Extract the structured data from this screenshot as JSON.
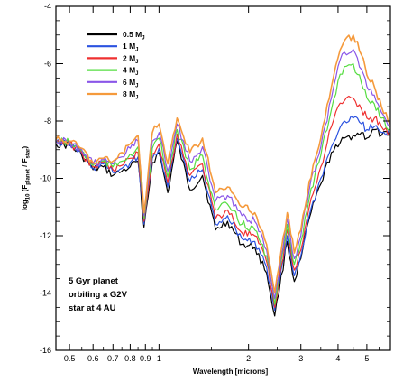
{
  "chart_data": {
    "type": "line",
    "xlabel": "Wavelength",
    "xlabel_unit": "[microns]",
    "ylabel": "log10 (F_planet / F_star)",
    "xscale": "log",
    "xlim": [
      0.45,
      6.0
    ],
    "ylim": [
      -16,
      -4
    ],
    "xticks": [
      0.5,
      0.6,
      0.7,
      0.8,
      0.9,
      1,
      2,
      3,
      4,
      5
    ],
    "xtick_labels": [
      "0.5",
      "0.6",
      "0.7",
      "0.8",
      "0.9",
      "1",
      "2",
      "3",
      "4",
      "5"
    ],
    "yticks": [
      -4,
      -6,
      -8,
      -10,
      -12,
      -14,
      -16
    ],
    "ytick_labels": [
      "-4",
      "-6",
      "-8",
      "-10",
      "-12",
      "-14",
      "-16"
    ],
    "legend_position": "top-left",
    "annotation": [
      "5 Gyr planet",
      "orbiting a G2V",
      "star at 4 AU"
    ],
    "series": [
      {
        "name": "0.5 M_J",
        "color": "#000000",
        "x": [
          0.45,
          0.5,
          0.55,
          0.6,
          0.65,
          0.7,
          0.75,
          0.8,
          0.85,
          0.89,
          0.95,
          1.0,
          1.07,
          1.15,
          1.27,
          1.4,
          1.55,
          1.7,
          1.9,
          2.1,
          2.3,
          2.45,
          2.7,
          2.85,
          3.0,
          3.2,
          3.5,
          3.8,
          4.0,
          4.2,
          4.5,
          4.8,
          5.0,
          5.3,
          5.6,
          6.0
        ],
        "y": [
          -8.8,
          -8.85,
          -9.2,
          -9.7,
          -9.6,
          -9.9,
          -9.75,
          -9.6,
          -9.4,
          -11.7,
          -9.45,
          -9.1,
          -10.5,
          -8.7,
          -10.4,
          -9.9,
          -11.8,
          -11.5,
          -12.3,
          -12.4,
          -13.3,
          -14.8,
          -12.2,
          -13.6,
          -12.8,
          -11.4,
          -10.2,
          -9.1,
          -8.9,
          -8.6,
          -8.5,
          -8.4,
          -8.6,
          -8.3,
          -8.5,
          -8.5
        ]
      },
      {
        "name": "1 M_J",
        "color": "#2b52e0",
        "x": [
          0.45,
          0.5,
          0.55,
          0.6,
          0.65,
          0.7,
          0.75,
          0.8,
          0.85,
          0.89,
          0.95,
          1.0,
          1.07,
          1.15,
          1.27,
          1.4,
          1.55,
          1.7,
          1.9,
          2.1,
          2.3,
          2.45,
          2.7,
          2.85,
          3.0,
          3.2,
          3.5,
          3.8,
          4.0,
          4.2,
          4.5,
          4.8,
          5.0,
          5.3,
          5.6,
          6.0
        ],
        "y": [
          -8.75,
          -8.8,
          -9.15,
          -9.65,
          -9.5,
          -9.8,
          -9.65,
          -9.45,
          -9.25,
          -11.6,
          -9.3,
          -8.95,
          -10.3,
          -8.6,
          -10.1,
          -9.7,
          -11.6,
          -11.3,
          -12.1,
          -12.2,
          -13.1,
          -14.6,
          -12.0,
          -13.4,
          -12.7,
          -11.3,
          -10.0,
          -8.9,
          -8.4,
          -8.0,
          -7.9,
          -8.1,
          -8.3,
          -8.2,
          -8.4,
          -8.5
        ]
      },
      {
        "name": "2 M_J",
        "color": "#ef3030",
        "x": [
          0.45,
          0.5,
          0.55,
          0.6,
          0.65,
          0.7,
          0.75,
          0.8,
          0.85,
          0.89,
          0.95,
          1.0,
          1.07,
          1.15,
          1.27,
          1.4,
          1.55,
          1.7,
          1.9,
          2.1,
          2.3,
          2.45,
          2.7,
          2.85,
          3.0,
          3.2,
          3.5,
          3.8,
          4.0,
          4.2,
          4.5,
          4.8,
          5.0,
          5.3,
          5.6,
          6.0
        ],
        "y": [
          -8.72,
          -8.77,
          -9.1,
          -9.6,
          -9.45,
          -9.7,
          -9.55,
          -9.3,
          -9.1,
          -11.5,
          -9.15,
          -8.8,
          -10.15,
          -8.45,
          -9.9,
          -9.5,
          -11.4,
          -11.1,
          -11.9,
          -12.0,
          -12.9,
          -14.5,
          -11.8,
          -13.2,
          -12.5,
          -11.0,
          -9.6,
          -8.2,
          -7.5,
          -7.3,
          -7.2,
          -7.6,
          -7.9,
          -7.9,
          -8.2,
          -8.4
        ]
      },
      {
        "name": "4 M_J",
        "color": "#55dd40",
        "x": [
          0.45,
          0.5,
          0.55,
          0.6,
          0.65,
          0.7,
          0.75,
          0.8,
          0.85,
          0.89,
          0.95,
          1.0,
          1.07,
          1.15,
          1.27,
          1.4,
          1.55,
          1.7,
          1.9,
          2.1,
          2.3,
          2.45,
          2.7,
          2.85,
          3.0,
          3.2,
          3.5,
          3.8,
          4.0,
          4.2,
          4.5,
          4.8,
          5.0,
          5.3,
          5.6,
          6.0
        ],
        "y": [
          -8.7,
          -8.75,
          -9.05,
          -9.55,
          -9.4,
          -9.6,
          -9.4,
          -9.15,
          -8.9,
          -11.4,
          -8.95,
          -8.6,
          -9.95,
          -8.3,
          -9.7,
          -9.2,
          -11.1,
          -10.9,
          -11.6,
          -11.8,
          -12.7,
          -14.4,
          -11.6,
          -13.0,
          -12.2,
          -10.7,
          -9.2,
          -7.6,
          -6.6,
          -6.1,
          -6.0,
          -6.7,
          -7.2,
          -7.4,
          -7.9,
          -8.3
        ]
      },
      {
        "name": "6 M_J",
        "color": "#8a56e8",
        "x": [
          0.45,
          0.5,
          0.55,
          0.6,
          0.65,
          0.7,
          0.75,
          0.8,
          0.85,
          0.89,
          0.95,
          1.0,
          1.07,
          1.15,
          1.27,
          1.4,
          1.55,
          1.7,
          1.9,
          2.1,
          2.3,
          2.45,
          2.7,
          2.85,
          3.0,
          3.2,
          3.5,
          3.8,
          4.0,
          4.2,
          4.5,
          4.8,
          5.0,
          5.3,
          5.6,
          6.0
        ],
        "y": [
          -8.68,
          -8.73,
          -9.0,
          -9.5,
          -9.35,
          -9.5,
          -9.25,
          -8.95,
          -8.7,
          -11.3,
          -8.7,
          -8.4,
          -9.75,
          -8.1,
          -9.4,
          -8.9,
          -10.8,
          -10.6,
          -11.3,
          -11.5,
          -12.5,
          -14.2,
          -11.4,
          -12.8,
          -12.0,
          -10.4,
          -8.9,
          -7.2,
          -6.1,
          -5.6,
          -5.5,
          -6.2,
          -6.8,
          -7.1,
          -7.7,
          -8.2
        ]
      },
      {
        "name": "8 M_J",
        "color": "#f59a3c",
        "x": [
          0.45,
          0.5,
          0.55,
          0.6,
          0.65,
          0.7,
          0.75,
          0.8,
          0.85,
          0.89,
          0.95,
          1.0,
          1.07,
          1.15,
          1.27,
          1.4,
          1.55,
          1.7,
          1.9,
          2.1,
          2.3,
          2.45,
          2.7,
          2.85,
          3.0,
          3.2,
          3.5,
          3.8,
          4.0,
          4.2,
          4.5,
          4.8,
          5.0,
          5.3,
          5.6,
          6.0
        ],
        "y": [
          -8.65,
          -8.7,
          -8.95,
          -9.45,
          -9.3,
          -9.4,
          -9.1,
          -8.8,
          -8.5,
          -11.2,
          -8.4,
          -8.1,
          -9.5,
          -7.9,
          -9.1,
          -8.6,
          -10.5,
          -10.3,
          -11.0,
          -11.2,
          -12.3,
          -14.0,
          -11.2,
          -12.6,
          -11.8,
          -10.1,
          -8.6,
          -6.8,
          -5.8,
          -5.2,
          -5.0,
          -5.7,
          -6.4,
          -6.8,
          -7.5,
          -8.1
        ]
      }
    ]
  }
}
